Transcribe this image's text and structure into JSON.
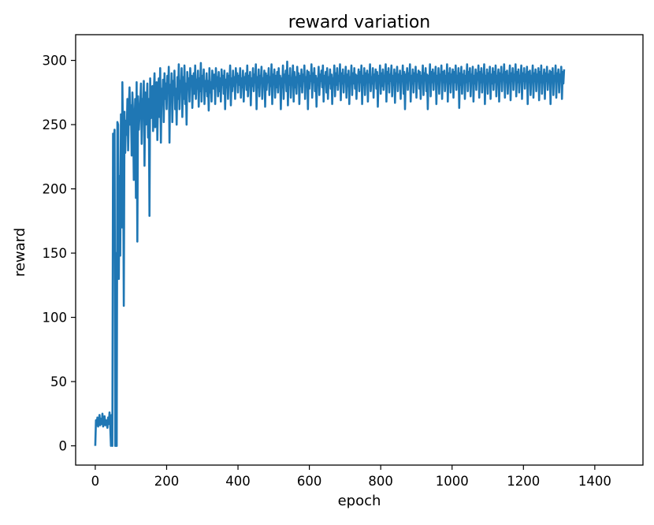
{
  "chart_data": {
    "type": "line",
    "title": "reward variation",
    "xlabel": "epoch",
    "ylabel": "reward",
    "xlim": [
      -55,
      1535
    ],
    "ylim": [
      -15,
      320
    ],
    "x_ticks": [
      0,
      200,
      400,
      600,
      800,
      1000,
      1200,
      1400
    ],
    "x_tick_labels": [
      "0",
      "200",
      "400",
      "600",
      "800",
      "1000",
      "1200",
      "1400"
    ],
    "y_ticks": [
      0,
      50,
      100,
      150,
      200,
      250,
      300
    ],
    "y_tick_labels": [
      "0",
      "50",
      "100",
      "150",
      "200",
      "250",
      "300"
    ],
    "grid": false,
    "color": "#1f77b4",
    "series": [
      {
        "x_start": 0,
        "x_step": 2,
        "values": [
          0,
          20,
          16,
          22,
          15,
          18,
          24,
          16,
          21,
          17,
          25,
          15,
          19,
          23,
          16,
          20,
          18,
          14,
          22,
          17,
          26,
          15,
          0,
          24,
          0,
          243,
          232,
          246,
          0,
          150,
          0,
          252,
          250,
          130,
          210,
          148,
          258,
          170,
          283,
          236,
          109,
          260,
          228,
          253,
          242,
          270,
          230,
          262,
          279,
          250,
          265,
          226,
          275,
          258,
          207,
          248,
          270,
          193,
          283,
          159,
          272,
          246,
          258,
          266,
          282,
          235,
          270,
          256,
          284,
          218,
          275,
          250,
          264,
          282,
          240,
          270,
          179,
          286,
          255,
          262,
          280,
          245,
          275,
          290,
          248,
          262,
          283,
          238,
          272,
          286,
          256,
          294,
          236,
          278,
          266,
          285,
          252,
          290,
          270,
          282,
          262,
          288,
          275,
          295,
          236,
          281,
          268,
          290,
          252,
          284,
          273,
          292,
          262,
          278,
          250,
          287,
          270,
          297,
          262,
          284,
          276,
          294,
          256,
          287,
          270,
          296,
          266,
          282,
          250,
          291,
          278,
          286,
          268,
          294,
          280,
          288,
          263,
          283,
          290,
          274,
          296,
          270,
          285,
          278,
          292,
          264,
          286,
          276,
          298,
          268,
          288,
          280,
          293,
          266,
          284,
          276,
          290,
          272,
          284,
          261,
          294,
          275,
          283,
          268,
          292,
          285,
          278,
          289,
          266,
          294,
          280,
          287,
          272,
          291,
          276,
          286,
          268,
          293,
          281,
          288,
          274,
          292,
          262,
          285,
          279,
          290,
          270,
          288,
          282,
          296,
          265,
          286,
          276,
          292,
          280,
          287,
          270,
          294,
          283,
          290,
          275,
          288,
          281,
          294,
          271,
          286,
          279,
          292,
          268,
          287,
          282,
          290,
          277,
          296,
          272,
          288,
          283,
          291,
          265,
          286,
          280,
          294,
          276,
          289,
          283,
          297,
          262,
          287,
          279,
          293,
          272,
          288,
          284,
          295,
          270,
          286,
          281,
          292,
          264,
          290,
          277,
          288,
          283,
          294,
          273,
          287,
          280,
          297,
          266,
          289,
          284,
          293,
          271,
          288,
          279,
          291,
          275,
          294,
          282,
          288,
          262,
          286,
          279,
          296,
          270,
          289,
          283,
          292,
          276,
          299,
          265,
          288,
          281,
          294,
          271,
          286,
          284,
          296,
          268,
          291,
          279,
          287,
          274,
          295,
          283,
          290,
          266,
          288,
          280,
          293,
          275,
          289,
          284,
          296,
          270,
          287,
          282,
          292,
          262,
          291,
          278,
          288,
          284,
          297,
          271,
          290,
          283,
          294,
          276,
          288,
          264,
          286,
          281,
          295,
          273,
          289,
          284,
          292,
          279,
          296,
          268,
          288,
          283,
          291,
          275,
          294,
          270,
          287,
          282,
          293,
          278,
          289,
          266,
          286,
          285,
          296,
          272,
          290,
          281,
          294,
          277,
          288,
          284,
          297,
          269,
          290,
          282,
          293,
          275,
          288,
          285,
          295,
          271,
          289,
          280,
          292,
          266,
          287,
          284,
          296,
          273,
          290,
          282,
          294,
          278,
          289,
          270,
          288,
          285,
          293,
          276,
          291,
          283,
          296,
          266,
          288,
          281,
          294,
          273,
          290,
          286,
          292,
          268,
          289,
          283,
          297,
          276,
          287,
          282,
          294,
          271,
          289,
          285,
          293,
          278,
          291,
          264,
          288,
          283,
          296,
          274,
          290,
          280,
          293,
          277,
          288,
          286,
          297,
          268,
          291,
          282,
          294,
          275,
          289,
          284,
          296,
          272,
          288,
          281,
          293,
          267,
          290,
          285,
          295,
          276,
          289,
          283,
          292,
          270,
          288,
          284,
          296,
          274,
          291,
          262,
          289,
          283,
          294,
          277,
          290,
          285,
          297,
          268,
          288,
          282,
          293,
          275,
          290,
          284,
          295,
          271,
          289,
          286,
          292,
          278,
          291,
          270,
          288,
          283,
          296,
          273,
          290,
          285,
          294,
          276,
          289,
          262,
          288,
          284,
          297,
          272,
          291,
          283,
          293,
          277,
          290,
          286,
          295,
          266,
          288,
          282,
          294,
          274,
          289,
          285,
          296,
          270,
          291,
          283,
          292,
          276,
          288,
          284,
          297,
          268,
          290,
          282,
          294,
          275,
          289,
          286,
          293,
          271,
          291,
          283,
          296,
          277,
          288,
          284,
          294,
          263,
          290,
          281,
          295,
          274,
          289,
          285,
          292,
          270,
          288,
          283,
          297,
          276,
          291,
          284,
          294,
          272,
          289,
          286,
          295,
          268,
          288,
          282,
          293,
          277,
          290,
          285,
          296,
          271,
          291,
          283,
          294,
          275,
          289,
          286,
          297,
          266,
          288,
          284,
          293,
          274,
          290,
          285,
          295,
          270,
          289,
          282,
          294,
          277,
          291,
          283,
          296,
          272,
          288,
          286,
          293,
          268,
          290,
          284,
          295,
          276,
          289,
          285,
          297,
          271,
          291,
          283,
          292,
          274,
          288,
          286,
          296,
          269,
          290,
          284,
          294,
          277,
          289,
          285,
          297,
          272,
          291,
          283,
          293,
          275,
          288,
          286,
          296,
          270,
          290,
          284,
          294,
          278,
          289,
          285,
          295,
          266,
          291,
          283,
          292,
          273,
          288,
          286,
          296,
          271,
          290,
          284,
          293,
          276,
          289,
          285,
          294,
          269,
          291,
          283,
          296,
          274,
          288,
          286,
          293,
          270,
          290,
          284,
          295,
          277,
          289,
          285,
          292,
          266,
          291,
          283,
          294,
          273,
          288,
          286,
          296,
          271,
          290,
          284,
          293,
          275,
          289,
          285,
          295,
          270,
          291,
          282,
          293
        ]
      }
    ]
  }
}
